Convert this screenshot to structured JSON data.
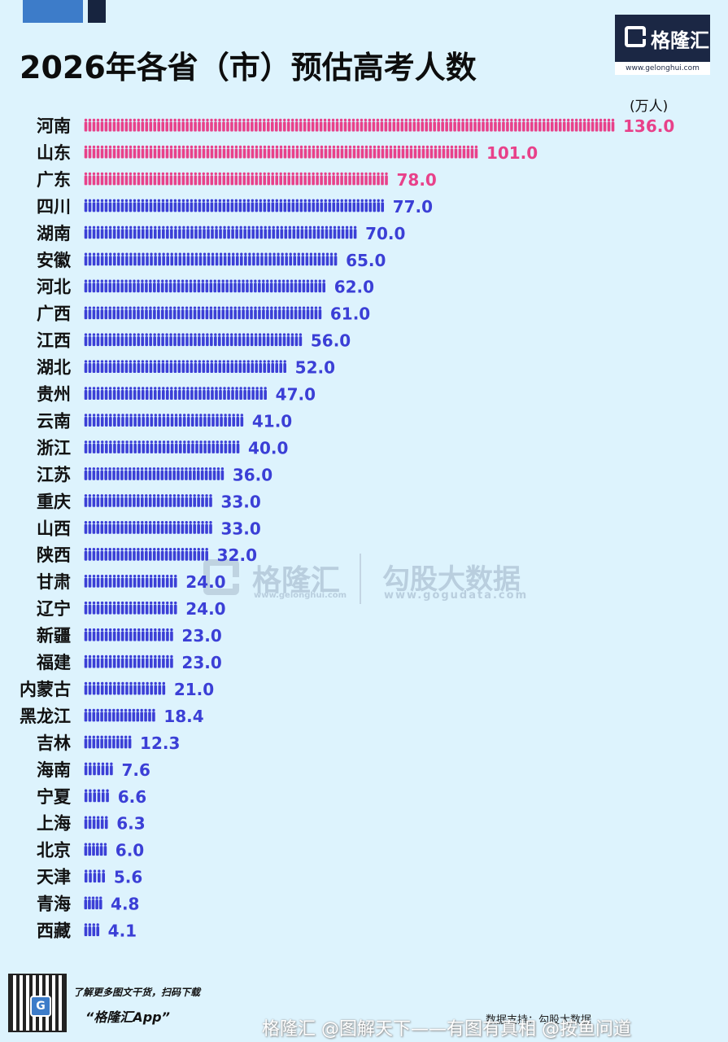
{
  "header": {
    "title": "2026年各省（市）预估高考人数",
    "logo_name": "格隆汇",
    "logo_url": "www.gelonghui.com"
  },
  "unit_label": "(万人)",
  "watermark": {
    "left_name": "格隆汇",
    "left_url": "www.gelonghui.com",
    "right_name": "勾股大数据",
    "right_url": "www.gogudata.com"
  },
  "footer": {
    "promo_line1": "了解更多图文干货，扫码下载",
    "promo_line2": "“格隆汇App”",
    "source": "数据支持：勾股大数据",
    "weibo_watermark": "格隆汇 @图解天下——有图有真相 @按鱼问道"
  },
  "colors": {
    "highlight": "#e8418a",
    "normal": "#3b3fd6",
    "background": "#ddf3fd"
  },
  "chart_data": {
    "type": "bar",
    "orientation": "horizontal",
    "mark": "pictogram-people",
    "title": "2026年各省（市）预估高考人数",
    "unit": "万人",
    "categories": [
      "河南",
      "山东",
      "广东",
      "四川",
      "湖南",
      "安徽",
      "河北",
      "广西",
      "江西",
      "湖北",
      "贵州",
      "云南",
      "浙江",
      "江苏",
      "重庆",
      "山西",
      "陕西",
      "甘肃",
      "辽宁",
      "新疆",
      "福建",
      "内蒙古",
      "黑龙江",
      "吉林",
      "海南",
      "宁夏",
      "上海",
      "北京",
      "天津",
      "青海",
      "西藏"
    ],
    "values": [
      136.0,
      101.0,
      78.0,
      77.0,
      70.0,
      65.0,
      62.0,
      61.0,
      56.0,
      52.0,
      47.0,
      41.0,
      40.0,
      36.0,
      33.0,
      33.0,
      32.0,
      24.0,
      24.0,
      23.0,
      23.0,
      21.0,
      18.4,
      12.3,
      7.6,
      6.6,
      6.3,
      6.0,
      5.6,
      4.8,
      4.1
    ],
    "value_labels": [
      "136.0",
      "101.0",
      "78.0",
      "77.0",
      "70.0",
      "65.0",
      "62.0",
      "61.0",
      "56.0",
      "52.0",
      "47.0",
      "41.0",
      "40.0",
      "36.0",
      "33.0",
      "33.0",
      "32.0",
      "24.0",
      "24.0",
      "23.0",
      "23.0",
      "21.0",
      "18.4",
      "12.3",
      "7.6",
      "6.6",
      "6.3",
      "6.0",
      "5.6",
      "4.8",
      "4.1"
    ],
    "highlighted_top": 3,
    "grid": false,
    "legend": "none"
  }
}
